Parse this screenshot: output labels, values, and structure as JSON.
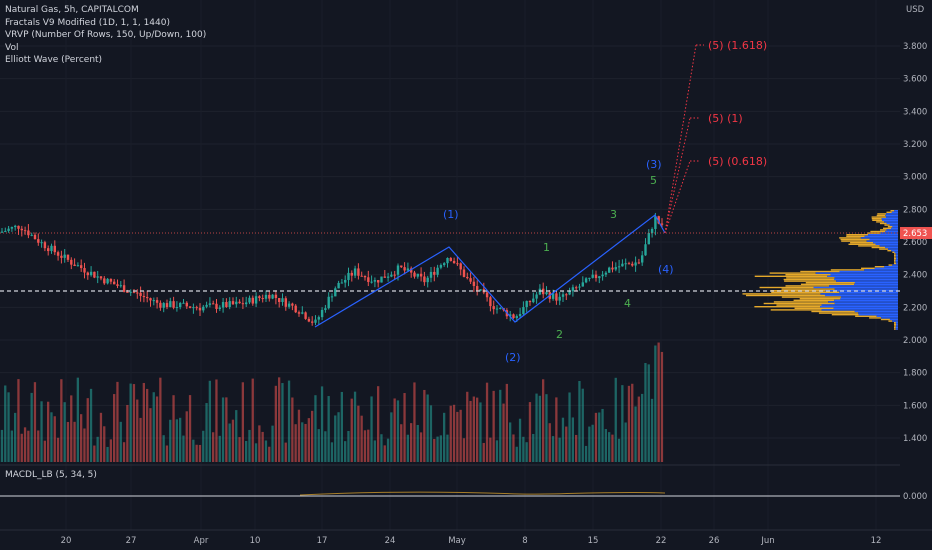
{
  "legend": {
    "title": "Natural Gas, 5h, CAPITALCOM",
    "fractals": "Fractals V9 Modified (1D, 1, 1, 1440)",
    "vrvp": "VRVP (Number Of Rows, 150, Up/Down, 100)",
    "vol": "Vol",
    "elliott": "Elliott Wave (Percent)"
  },
  "macd_legend": "MACDL_LB (5, 34, 5)",
  "price_axis": {
    "currency": "USD",
    "ticks": [
      "3.800",
      "3.600",
      "3.400",
      "3.200",
      "3.000",
      "2.800",
      "2.600",
      "2.400",
      "2.200",
      "2.000",
      "1.800",
      "1.600",
      "1.400"
    ],
    "current_price": "2.653"
  },
  "macd_axis": {
    "ticks": [
      "0.000"
    ]
  },
  "time_axis": {
    "labels": [
      "20",
      "27",
      "Apr",
      "10",
      "17",
      "24",
      "May",
      "8",
      "15",
      "22",
      "26",
      "Jun",
      "12"
    ]
  },
  "waves": {
    "major": [
      "(1)",
      "(2)",
      "(3)",
      "(4)"
    ],
    "minor": [
      "1",
      "2",
      "3",
      "4",
      "5"
    ]
  },
  "projections": [
    "(5) (1.618)",
    "(5) (1)",
    "(5) (0.618)"
  ],
  "colors": {
    "background": "#131722",
    "up": "#26a69a",
    "down": "#ef5350",
    "wave": "#2962ff",
    "minor_wave": "#4caf50",
    "projection": "#f23645",
    "vrvp_up": "#2962ff",
    "vrvp_down": "#e5a92b"
  }
}
